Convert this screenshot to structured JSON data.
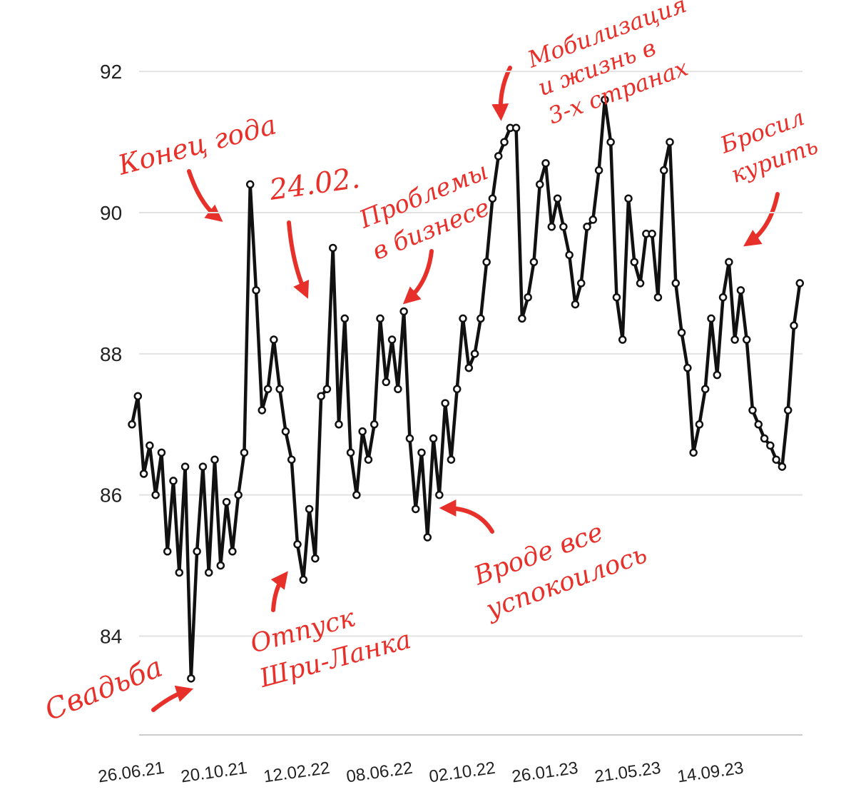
{
  "chart_data": {
    "type": "line",
    "categories": [
      "26.06.21",
      null,
      null,
      null,
      null,
      null,
      null,
      null,
      null,
      null,
      null,
      null,
      null,
      null,
      "20.10.21",
      null,
      null,
      null,
      null,
      null,
      null,
      null,
      null,
      null,
      null,
      null,
      null,
      null,
      "12.02.22",
      null,
      null,
      null,
      null,
      null,
      null,
      null,
      null,
      null,
      null,
      null,
      null,
      null,
      "08.06.22",
      null,
      null,
      null,
      null,
      null,
      null,
      null,
      null,
      null,
      null,
      null,
      null,
      null,
      "02.10.22",
      null,
      null,
      null,
      null,
      null,
      null,
      null,
      null,
      null,
      null,
      null,
      null,
      null,
      "26.01.23",
      null,
      null,
      null,
      null,
      null,
      null,
      null,
      null,
      null,
      null,
      null,
      null,
      null,
      "21.05.23",
      null,
      null,
      null,
      null,
      null,
      null,
      null,
      null,
      null,
      null,
      null,
      null,
      null,
      "14.09.23",
      null,
      null,
      null,
      null,
      null,
      null,
      null,
      null,
      null,
      null,
      null,
      null,
      null,
      null,
      null
    ],
    "values": [
      87.0,
      87.4,
      86.3,
      86.7,
      86.0,
      86.6,
      85.2,
      86.2,
      84.9,
      86.4,
      83.4,
      85.2,
      86.4,
      84.9,
      86.5,
      85.0,
      85.9,
      85.2,
      86.0,
      86.6,
      90.4,
      88.9,
      87.2,
      87.5,
      88.2,
      87.5,
      86.9,
      86.5,
      85.3,
      84.8,
      85.8,
      85.1,
      87.4,
      87.5,
      89.5,
      87.0,
      88.5,
      86.6,
      86.0,
      86.9,
      86.5,
      87.0,
      88.5,
      87.6,
      88.2,
      87.5,
      88.6,
      86.8,
      85.8,
      86.6,
      85.4,
      86.8,
      86.0,
      87.3,
      86.5,
      87.5,
      88.5,
      87.8,
      88.0,
      88.5,
      89.3,
      90.2,
      90.8,
      91.0,
      91.2,
      91.2,
      88.5,
      88.8,
      89.3,
      90.4,
      90.7,
      89.8,
      90.2,
      89.8,
      89.4,
      88.7,
      89.0,
      89.8,
      89.9,
      90.6,
      91.6,
      91.0,
      88.8,
      88.2,
      90.2,
      89.3,
      89.0,
      89.7,
      89.7,
      88.8,
      90.6,
      91.0,
      89.0,
      88.3,
      87.8,
      86.6,
      87.0,
      87.5,
      88.5,
      87.7,
      88.8,
      89.3,
      88.2,
      88.9,
      88.2,
      87.2,
      87.0,
      86.8,
      86.7,
      86.5,
      86.4,
      87.2,
      88.4,
      89.0
    ],
    "color": "#111111",
    "ylim": [
      82.6,
      92.4
    ],
    "yticks": [
      84,
      86,
      88,
      90,
      92
    ],
    "grid": true,
    "annotations": [
      {
        "text": [
          "Свадьба"
        ]
      },
      {
        "text": [
          "Конец года"
        ]
      },
      {
        "text": [
          "24.02."
        ]
      },
      {
        "text": [
          "Отпуск",
          "Шри-Ланка"
        ]
      },
      {
        "text": [
          "Проблемы",
          "в бизнесе"
        ]
      },
      {
        "text": [
          "Мобилизация",
          "и жизнь в",
          "3-х странах"
        ]
      },
      {
        "text": [
          "Вроде все",
          "успокоилось"
        ]
      },
      {
        "text": [
          "Бросил",
          "курить"
        ]
      }
    ]
  }
}
